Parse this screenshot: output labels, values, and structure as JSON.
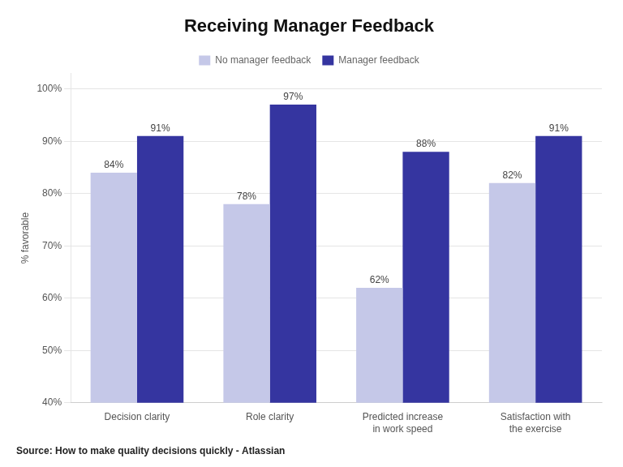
{
  "chart_data": {
    "type": "bar",
    "title": "Receiving Manager Feedback",
    "categories": [
      "Decision clarity",
      "Role clarity",
      "Predicted increase\nin work speed",
      "Satisfaction with\nthe exercise"
    ],
    "series": [
      {
        "name": "No manager feedback",
        "color": "#c5c8e8",
        "values": [
          84,
          78,
          62,
          82
        ],
        "value_labels": [
          "84%",
          "78%",
          "62%",
          "82%"
        ]
      },
      {
        "name": "Manager feedback",
        "color": "#3535a0",
        "values": [
          91,
          97,
          88,
          91
        ],
        "value_labels": [
          "91%",
          "97%",
          "88%",
          "91%"
        ]
      }
    ],
    "ylabel": "% favorable",
    "ylim": [
      40,
      103
    ],
    "yticks": [
      {
        "value": 40,
        "label": "40%"
      },
      {
        "value": 50,
        "label": "50%"
      },
      {
        "value": 60,
        "label": "60%"
      },
      {
        "value": 70,
        "label": "70%"
      },
      {
        "value": 80,
        "label": "80%"
      },
      {
        "value": 90,
        "label": "90%"
      },
      {
        "value": 100,
        "label": "100%"
      }
    ],
    "grid": true,
    "legend": "top",
    "data_labels": true,
    "source": "Source: How to make quality decisions quickly - Atlassian"
  }
}
